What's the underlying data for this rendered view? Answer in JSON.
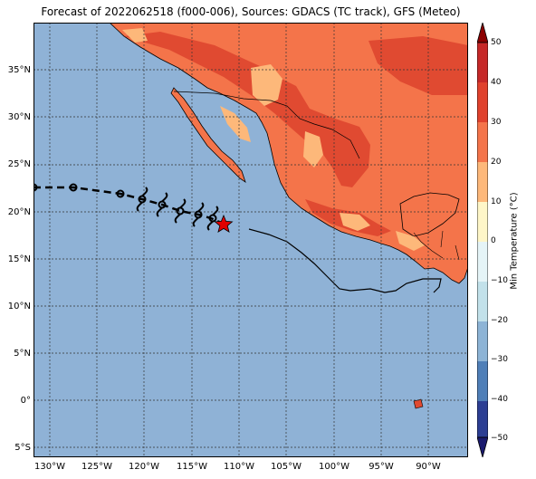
{
  "title": "Forecast of 2022062518 (f000-006), Sources: GDACS (TC track), GFS (Meteo)",
  "colorbar": {
    "label": "Min Temperature (°C)",
    "ticks": [
      "50",
      "40",
      "30",
      "20",
      "10",
      "0",
      "−10",
      "−20",
      "−30",
      "−40",
      "−50"
    ],
    "colors": [
      "#8b0000",
      "#c62828",
      "#e0412d",
      "#f4744a",
      "#fdb87a",
      "#fef6c8",
      "#e5f4f7",
      "#c2e1ea",
      "#8db4d6",
      "#4f7fb8",
      "#2c3e93",
      "#1a1a6e"
    ]
  },
  "axes": {
    "lat_labels": [
      "35°N",
      "30°N",
      "25°N",
      "20°N",
      "15°N",
      "10°N",
      "5°N",
      "0°",
      "5°S"
    ],
    "lon_labels": [
      "130°W",
      "125°W",
      "120°W",
      "115°W",
      "110°W",
      "105°W",
      "100°W",
      "95°W",
      "90°W"
    ]
  },
  "map": {
    "ocean_color": "#8fb2d6",
    "land_colors": {
      "hot": "#e04a31",
      "warm": "#f4744a",
      "mild": "#fdb87a"
    }
  },
  "track": {
    "past_marker": "open-circle",
    "forecast_marker": "tropical-cyclone-symbol",
    "current_marker": "red-star",
    "current_color": "#e00000"
  }
}
